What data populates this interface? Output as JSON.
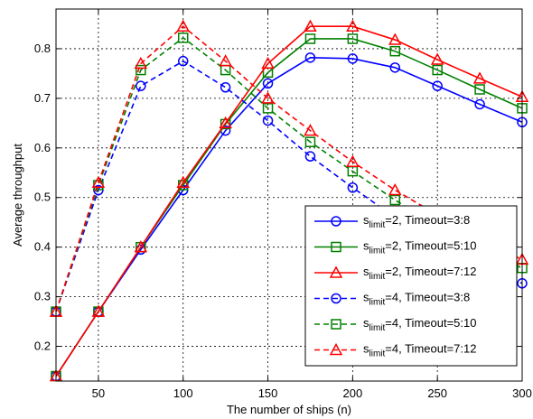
{
  "chart_data": {
    "type": "line",
    "xlabel": "The number of ships (n)",
    "ylabel": "Average throughput",
    "xlim": [
      25,
      300
    ],
    "ylim": [
      0.13,
      0.88
    ],
    "xticks": [
      50,
      100,
      150,
      200,
      250,
      300
    ],
    "yticks": [
      0.2,
      0.3,
      0.4,
      0.5,
      0.6,
      0.7,
      0.8
    ],
    "xtick_labels": [
      "50",
      "100",
      "150",
      "200",
      "250",
      "300"
    ],
    "ytick_labels": [
      "0.2",
      "0.3",
      "0.4",
      "0.5",
      "0.6",
      "0.7",
      "0.8"
    ],
    "grid": true,
    "legend_position": "bottom-right",
    "x": [
      25,
      50,
      75,
      100,
      125,
      150,
      175,
      200,
      225,
      250,
      275,
      300
    ],
    "series": [
      {
        "legend_base": "s",
        "legend_sub": "limit",
        "legend_rest": "=2, Timeout=3:8",
        "color": "#0000ff",
        "style": "solid",
        "marker": "circle",
        "values": [
          0.14,
          0.27,
          0.395,
          0.515,
          0.635,
          0.73,
          0.782,
          0.78,
          0.762,
          0.725,
          0.688,
          0.652
        ]
      },
      {
        "legend_base": "s",
        "legend_sub": "limit",
        "legend_rest": "=2, Timeout=5:10",
        "color": "#008000",
        "style": "solid",
        "marker": "square",
        "values": [
          0.14,
          0.27,
          0.4,
          0.525,
          0.648,
          0.752,
          0.82,
          0.82,
          0.795,
          0.757,
          0.718,
          0.68
        ]
      },
      {
        "legend_base": "s",
        "legend_sub": "limit",
        "legend_rest": "=2, Timeout=7:12",
        "color": "#ff0000",
        "style": "solid",
        "marker": "triangle",
        "values": [
          0.14,
          0.27,
          0.4,
          0.53,
          0.65,
          0.77,
          0.845,
          0.845,
          0.818,
          0.778,
          0.74,
          0.703
        ]
      },
      {
        "legend_base": "s",
        "legend_sub": "limit",
        "legend_rest": "=4, Timeout=3:8",
        "color": "#0000ff",
        "style": "dashed",
        "marker": "circle",
        "values": [
          0.27,
          0.515,
          0.725,
          0.775,
          0.722,
          0.655,
          0.583,
          0.52,
          0.46,
          0.405,
          0.36,
          0.327
        ]
      },
      {
        "legend_base": "s",
        "legend_sub": "limit",
        "legend_rest": "=4, Timeout=5:10",
        "color": "#008000",
        "style": "dashed",
        "marker": "square",
        "values": [
          0.27,
          0.525,
          0.757,
          0.822,
          0.757,
          0.68,
          0.612,
          0.553,
          0.495,
          0.442,
          0.395,
          0.358
        ]
      },
      {
        "legend_base": "s",
        "legend_sub": "limit",
        "legend_rest": "=4, Timeout=7:12",
        "color": "#ff0000",
        "style": "dashed",
        "marker": "triangle",
        "values": [
          0.27,
          0.53,
          0.77,
          0.845,
          0.775,
          0.7,
          0.635,
          0.572,
          0.515,
          0.465,
          0.415,
          0.375
        ]
      }
    ]
  }
}
